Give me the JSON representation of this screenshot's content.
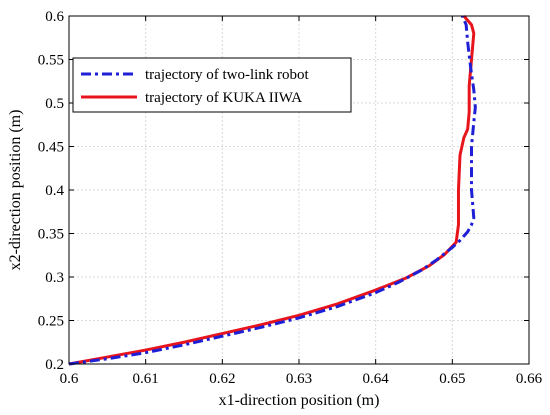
{
  "chart_data": {
    "type": "line",
    "xlabel": "x1-direction position (m)",
    "ylabel": "x2-direction position (m)",
    "xlim": [
      0.6,
      0.66
    ],
    "ylim": [
      0.2,
      0.6
    ],
    "xticks": [
      0.6,
      0.61,
      0.62,
      0.63,
      0.64,
      0.65,
      0.66
    ],
    "yticks": [
      0.2,
      0.25,
      0.3,
      0.35,
      0.4,
      0.45,
      0.5,
      0.55,
      0.6
    ],
    "xtick_labels": [
      "0.6",
      "0.61",
      "0.62",
      "0.63",
      "0.64",
      "0.65",
      "0.66"
    ],
    "ytick_labels": [
      "0.2",
      "0.25",
      "0.3",
      "0.35",
      "0.4",
      "0.45",
      "0.5",
      "0.55",
      "0.6"
    ],
    "grid": true,
    "legend_position": "top-left",
    "series": [
      {
        "name": "trajectory of two-link robot",
        "color": "#1f1fd6",
        "style": "dash-dot",
        "x": [
          0.6,
          0.605,
          0.61,
          0.615,
          0.62,
          0.625,
          0.63,
          0.635,
          0.64,
          0.643,
          0.646,
          0.648,
          0.65,
          0.651,
          0.652,
          0.6525,
          0.6528,
          0.6525,
          0.6525,
          0.6528,
          0.653,
          0.6528,
          0.6524,
          0.652,
          0.6518,
          0.6513
        ],
        "y": [
          0.2,
          0.206,
          0.213,
          0.222,
          0.232,
          0.242,
          0.253,
          0.266,
          0.282,
          0.294,
          0.308,
          0.32,
          0.334,
          0.342,
          0.352,
          0.36,
          0.368,
          0.4,
          0.45,
          0.478,
          0.495,
          0.515,
          0.54,
          0.57,
          0.59,
          0.6
        ]
      },
      {
        "name": "trajectory of KUKA IIWA",
        "color": "#e8141c",
        "style": "solid",
        "x": [
          0.6,
          0.605,
          0.61,
          0.615,
          0.62,
          0.625,
          0.63,
          0.635,
          0.64,
          0.644,
          0.647,
          0.649,
          0.6505,
          0.6508,
          0.6508,
          0.651,
          0.6515,
          0.652,
          0.6522,
          0.6522,
          0.6525,
          0.6528,
          0.6525,
          0.6515
        ],
        "y": [
          0.2,
          0.208,
          0.216,
          0.225,
          0.235,
          0.245,
          0.256,
          0.269,
          0.285,
          0.299,
          0.313,
          0.326,
          0.34,
          0.36,
          0.4,
          0.44,
          0.46,
          0.47,
          0.49,
          0.52,
          0.55,
          0.58,
          0.59,
          0.6
        ]
      }
    ]
  }
}
